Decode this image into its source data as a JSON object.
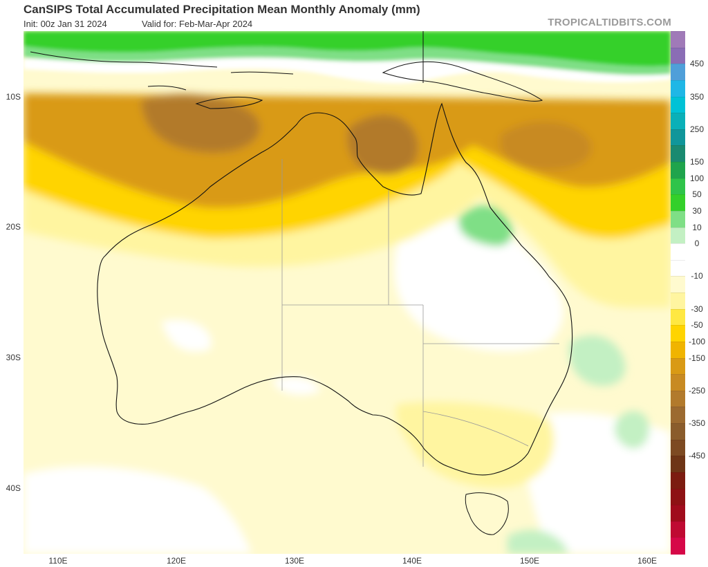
{
  "header": {
    "title": "CanSIPS Total Accumulated Precipitation Mean Monthly Anomaly (mm)",
    "init": "Init: 00z Jan 31 2024",
    "valid": "Valid for: Feb-Mar-Apr 2024",
    "brand": "TROPICALTIDBITS.COM"
  },
  "map": {
    "latitude_labels": [
      "10S",
      "20S",
      "30S",
      "40S"
    ],
    "longitude_labels": [
      "110E",
      "120E",
      "130E",
      "140E",
      "150E",
      "160E"
    ]
  },
  "colorbar": {
    "labels": [
      "450",
      "350",
      "250",
      "150",
      "100",
      "50",
      "30",
      "10",
      "0",
      "-10",
      "-30",
      "-50",
      "-100",
      "-150",
      "-250",
      "-350",
      "-450"
    ],
    "colors": [
      "#a07ab8",
      "#8a6db5",
      "#4f9fd9",
      "#1fb7e6",
      "#00c2d6",
      "#0ab0b8",
      "#10969a",
      "#1a8a70",
      "#1fa44c",
      "#2fc44a",
      "#34d02a",
      "#7fdf86",
      "#c3f0c3",
      "#ffffff",
      "#ffffff",
      "#fffacf",
      "#fff5a0",
      "#ffe842",
      "#ffd400",
      "#f0b400",
      "#d99a15",
      "#c88a22",
      "#b27a2c",
      "#9c6a30",
      "#8a5c2c",
      "#7d4a22",
      "#6e3516",
      "#7c1c10",
      "#8e1214",
      "#a00c1c",
      "#bf0a32",
      "#d60848"
    ]
  }
}
